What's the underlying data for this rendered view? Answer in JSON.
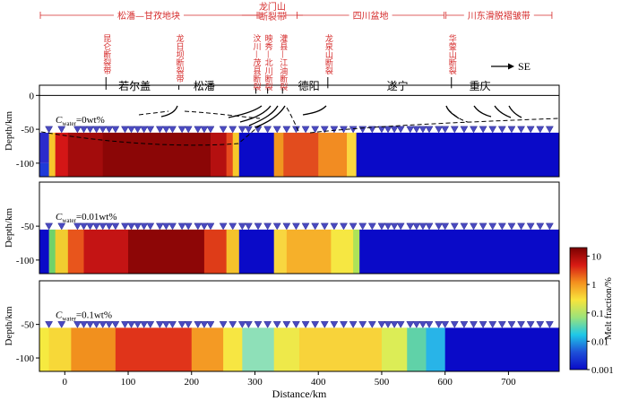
{
  "chart_data": [
    {
      "type": "heatmap",
      "panel": "top",
      "condition_label": "C",
      "condition_subscript": "water",
      "condition_value": "=0wt%",
      "ylabel": "Depth/km",
      "xlim": [
        -40,
        780
      ],
      "ylim": [
        -120,
        15
      ],
      "y_ticks": [
        0,
        -50,
        -100
      ],
      "stations_depth": -55,
      "stations_x": [
        -25,
        -5,
        20,
        30,
        40,
        50,
        60,
        70,
        80,
        95,
        105,
        115,
        125,
        135,
        150,
        160,
        170,
        185,
        195,
        210,
        220,
        230,
        250,
        265,
        280,
        290,
        305,
        320,
        335,
        350,
        365,
        380,
        395,
        410,
        425,
        440,
        455,
        470,
        485,
        500,
        510,
        520,
        530,
        545,
        555,
        565,
        575,
        590,
        600,
        615,
        630,
        645,
        660,
        675,
        690,
        705,
        720,
        735,
        750,
        765
      ],
      "regions": [
        {
          "name": "松潘—甘孜地块",
          "x": [
            -40,
            305
          ]
        },
        {
          "name": "龙门山断裂带",
          "x": [
            305,
            350
          ]
        },
        {
          "name": "四川盆地",
          "x": [
            365,
            600
          ]
        },
        {
          "name": "川东滑脱褶皱带",
          "x": [
            600,
            770
          ]
        }
      ],
      "faults": [
        {
          "label": "昆仑断裂带",
          "x": 65
        },
        {
          "label": "龙日坝断裂带",
          "x": 180
        },
        {
          "label": "汶川—茂县断裂",
          "x": 310
        },
        {
          "label": "映秀—北川断裂",
          "x": 320
        },
        {
          "label": "灌县—江油断裂",
          "x": 335
        },
        {
          "label": "龙泉山断裂",
          "x": 415
        },
        {
          "label": "华蓥山断裂",
          "x": 610
        }
      ],
      "places": [
        {
          "label": "若尔盖",
          "x": 110
        },
        {
          "label": "松潘",
          "x": 220
        },
        {
          "label": "德阳",
          "x": 385
        },
        {
          "label": "遂宁",
          "x": 525
        },
        {
          "label": "重庆",
          "x": 655
        }
      ],
      "direction_label": "SE",
      "cells": [
        [
          -40,
          -25,
          -100,
          -55,
          "#2b2bcc"
        ],
        [
          -40,
          -25,
          -120,
          -100,
          "#1f3ad8"
        ],
        [
          -25,
          -15,
          -120,
          -55,
          "#f7c62c"
        ],
        [
          -15,
          5,
          -120,
          -55,
          "#d41616"
        ],
        [
          5,
          60,
          -120,
          -55,
          "#a30c0c"
        ],
        [
          60,
          230,
          -120,
          -55,
          "#8b0606"
        ],
        [
          230,
          255,
          -120,
          -55,
          "#b51010"
        ],
        [
          255,
          265,
          -120,
          -55,
          "#e64a1e"
        ],
        [
          265,
          275,
          -120,
          -55,
          "#f6c82a"
        ],
        [
          275,
          330,
          -120,
          -55,
          "#0a0ac8"
        ],
        [
          330,
          345,
          -120,
          -55,
          "#f09620"
        ],
        [
          345,
          400,
          -120,
          -55,
          "#e24c1e"
        ],
        [
          400,
          445,
          -120,
          -55,
          "#f28c22"
        ],
        [
          445,
          460,
          -120,
          -55,
          "#fbd740"
        ],
        [
          460,
          780,
          -120,
          -55,
          "#0a0ac8"
        ]
      ]
    },
    {
      "type": "heatmap",
      "panel": "middle",
      "condition_label": "C",
      "condition_subscript": "water",
      "condition_value": "=0.01wt%",
      "ylabel": "Depth/km",
      "xlim": [
        -40,
        780
      ],
      "ylim": [
        -120,
        15
      ],
      "y_ticks": [
        -50,
        -100
      ],
      "stations_depth": -55,
      "cells": [
        [
          -40,
          -25,
          -120,
          -55,
          "#0a0ac8"
        ],
        [
          -25,
          -15,
          -120,
          -55,
          "#6fd26a"
        ],
        [
          -15,
          5,
          -120,
          -55,
          "#f1cc30"
        ],
        [
          5,
          30,
          -120,
          -55,
          "#e8551c"
        ],
        [
          30,
          100,
          -120,
          -55,
          "#c41414"
        ],
        [
          100,
          220,
          -120,
          -55,
          "#8d0606"
        ],
        [
          220,
          255,
          -120,
          -55,
          "#de3c18"
        ],
        [
          255,
          275,
          -120,
          -55,
          "#f5c22c"
        ],
        [
          275,
          330,
          -120,
          -55,
          "#0a0ac8"
        ],
        [
          330,
          350,
          -120,
          -55,
          "#f8d640"
        ],
        [
          350,
          420,
          -120,
          -55,
          "#f6b02a"
        ],
        [
          420,
          455,
          -120,
          -55,
          "#f6e742"
        ],
        [
          455,
          465,
          -120,
          -55,
          "#aee358"
        ],
        [
          465,
          780,
          -120,
          -55,
          "#0a0ac8"
        ]
      ]
    },
    {
      "type": "heatmap",
      "panel": "bottom",
      "condition_label": "C",
      "condition_subscript": "water",
      "condition_value": "=0.1wt%",
      "ylabel": "Depth/km",
      "xlabel": "Distance/km",
      "xlim": [
        -40,
        780
      ],
      "ylim": [
        -120,
        15
      ],
      "x_ticks": [
        0,
        100,
        200,
        300,
        400,
        500,
        600,
        700
      ],
      "y_ticks": [
        -50,
        -100
      ],
      "stations_depth": -55,
      "cells": [
        [
          -40,
          -25,
          -120,
          -55,
          "#f6ea40"
        ],
        [
          -25,
          10,
          -120,
          -55,
          "#f7d838"
        ],
        [
          10,
          80,
          -120,
          -55,
          "#f1901e"
        ],
        [
          80,
          200,
          -120,
          -55,
          "#e0341a"
        ],
        [
          200,
          250,
          -120,
          -55,
          "#f49a24"
        ],
        [
          250,
          280,
          -120,
          -55,
          "#f7e642"
        ],
        [
          280,
          330,
          -120,
          -55,
          "#8ee0b8"
        ],
        [
          330,
          370,
          -120,
          -55,
          "#eee94a"
        ],
        [
          370,
          500,
          -120,
          -55,
          "#f8d33a"
        ],
        [
          500,
          540,
          -120,
          -55,
          "#dced56"
        ],
        [
          540,
          570,
          -120,
          -55,
          "#60d2a8"
        ],
        [
          570,
          600,
          -120,
          -55,
          "#28b4e8"
        ],
        [
          600,
          780,
          -120,
          -55,
          "#0a0ac8"
        ]
      ]
    }
  ],
  "colorbar": {
    "label": "Melt fraction/%",
    "scale": "log",
    "range": [
      0.001,
      20
    ],
    "ticks": [
      "10",
      "1",
      "0.1",
      "0.01",
      "0.001"
    ],
    "colors": [
      "#7a0000",
      "#d71a14",
      "#f4901e",
      "#f8e43c",
      "#9be37a",
      "#1ec8e8",
      "#1e50d8",
      "#0a0ac8"
    ]
  }
}
